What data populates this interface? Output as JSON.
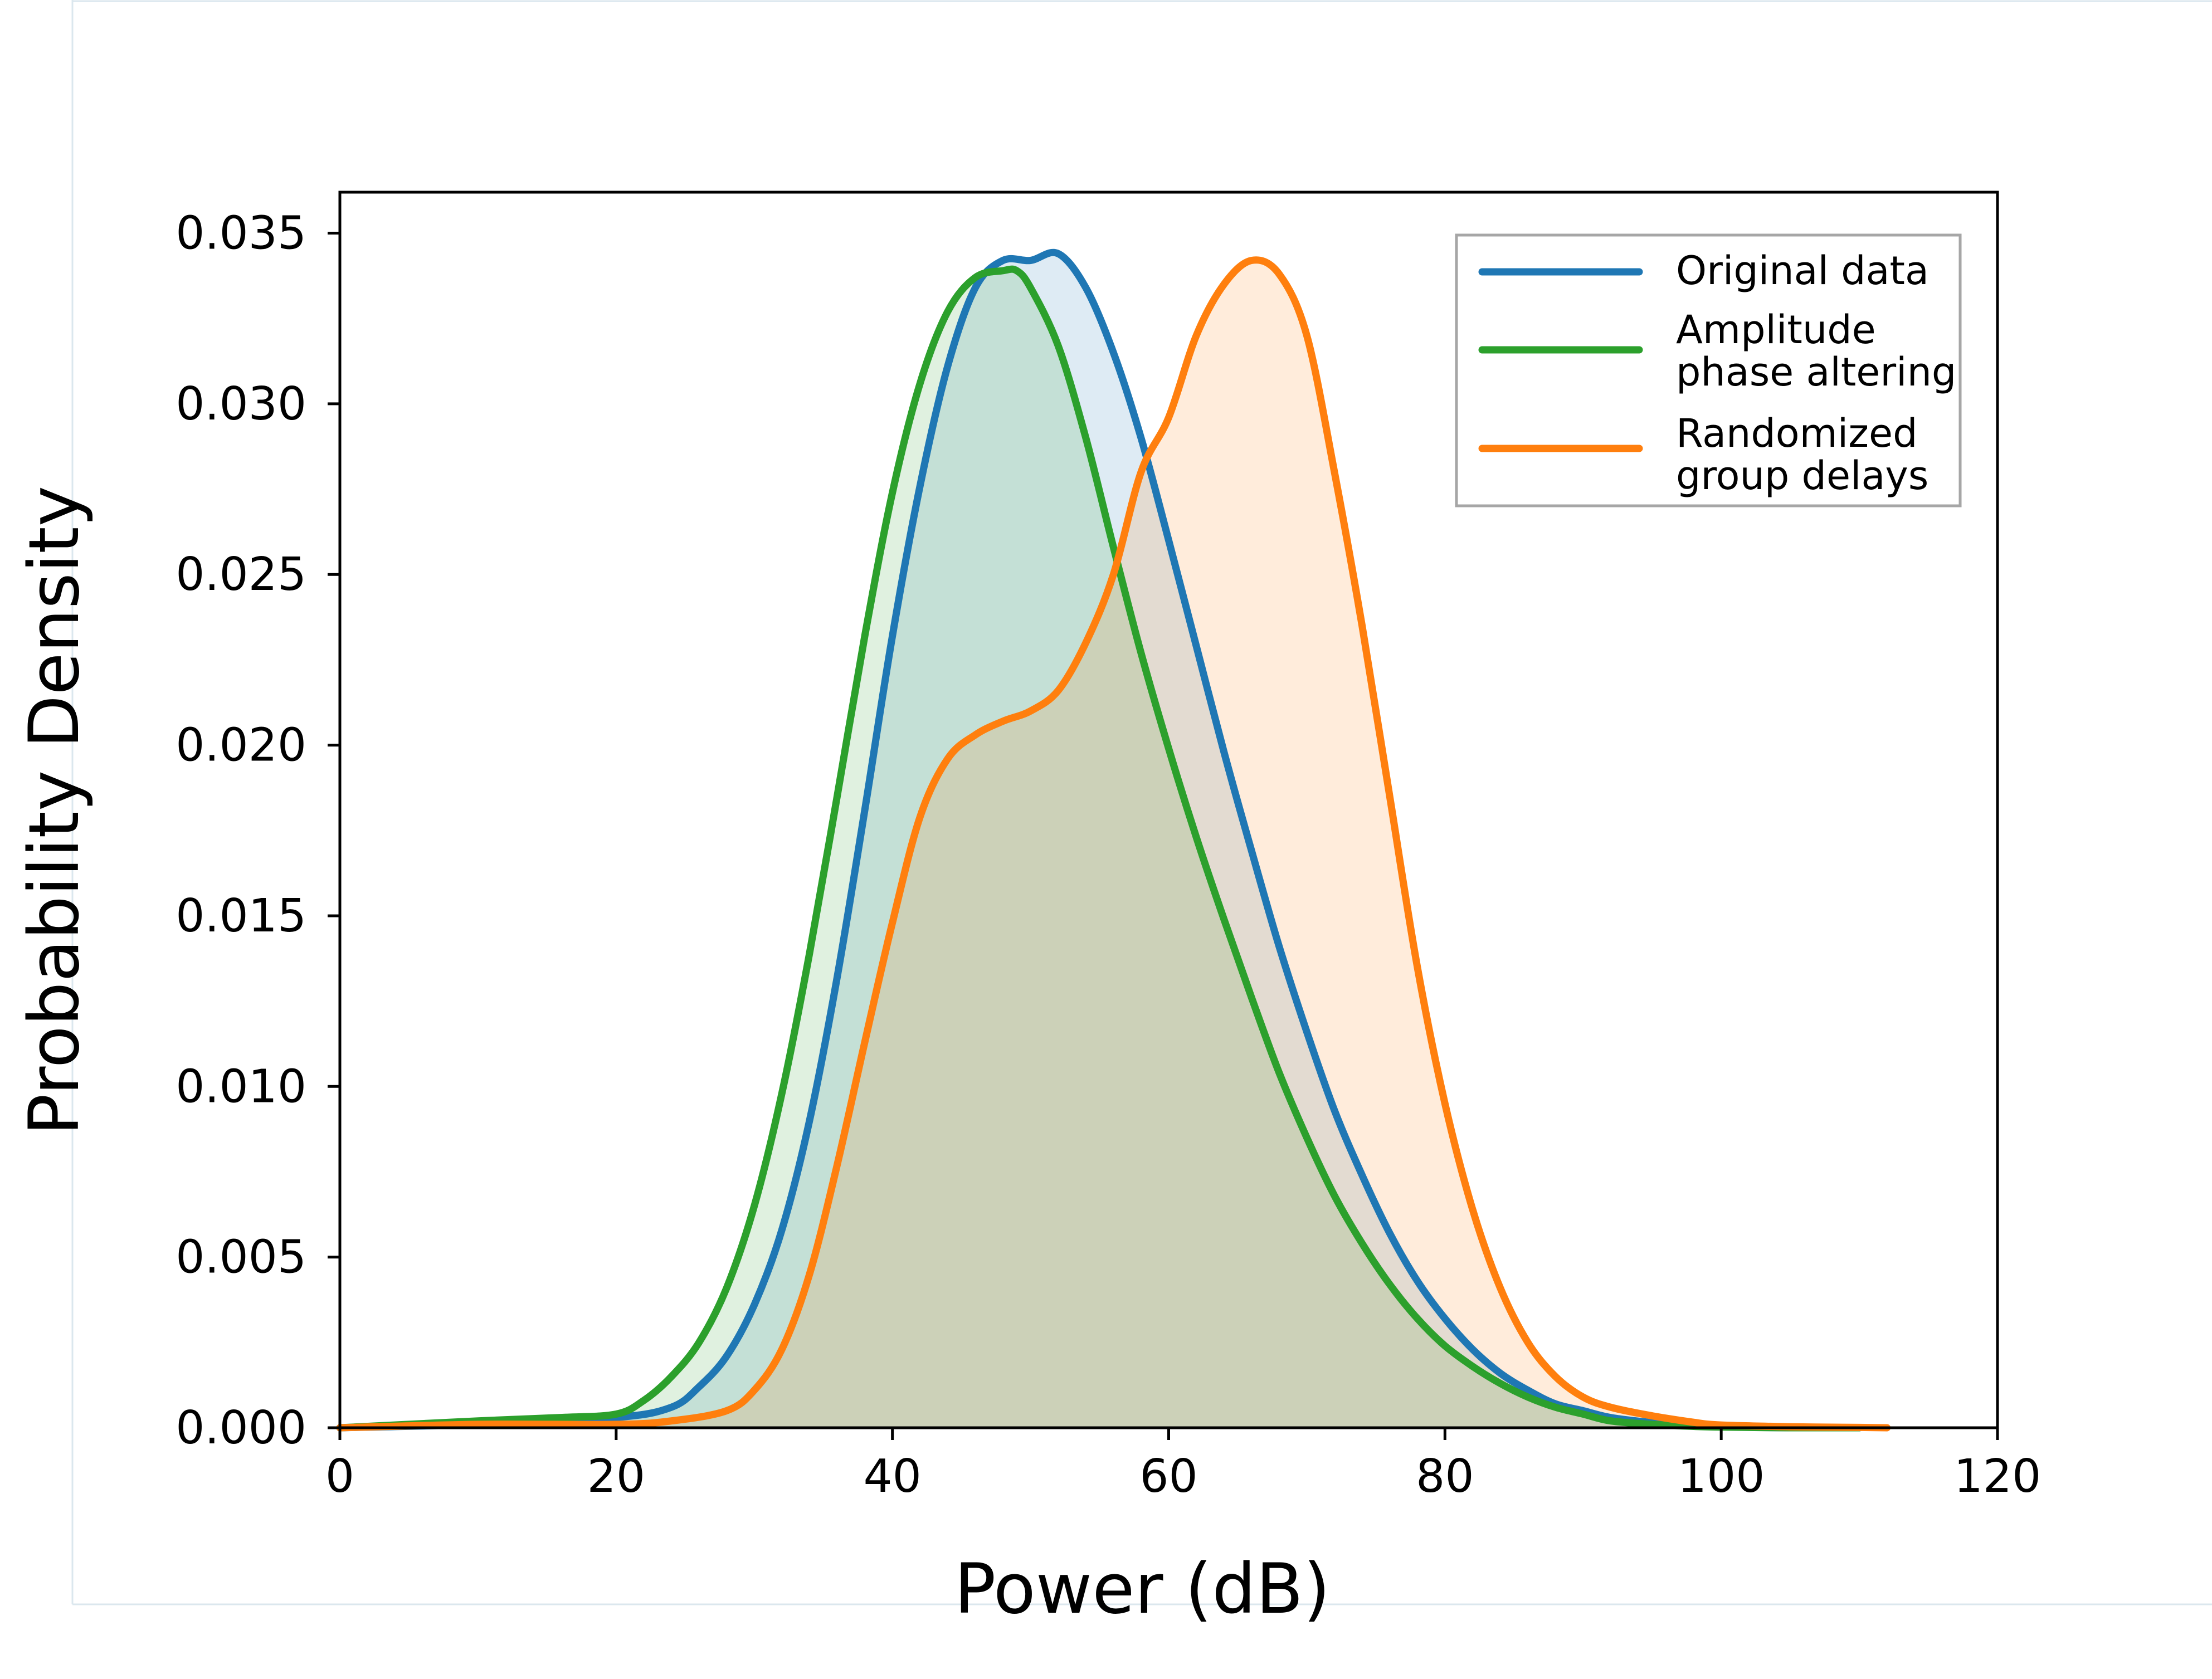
{
  "chart_data": {
    "type": "area",
    "title": "",
    "xlabel": "Power (dB)",
    "ylabel": "Probability Density",
    "xlim": [
      0,
      120
    ],
    "ylim": [
      0,
      0.0362
    ],
    "xticks": [
      0,
      20,
      40,
      60,
      80,
      100,
      120
    ],
    "xtick_labels": [
      "0",
      "20",
      "40",
      "60",
      "80",
      "100",
      "120"
    ],
    "yticks": [
      0.0,
      0.005,
      0.01,
      0.015,
      0.02,
      0.025,
      0.03,
      0.035
    ],
    "ytick_labels": [
      "0.000",
      "0.005",
      "0.010",
      "0.015",
      "0.020",
      "0.025",
      "0.030",
      "0.035"
    ],
    "grid": false,
    "legend_position": "top-right",
    "series": [
      {
        "name": "Original data",
        "color": "#1f77b4",
        "fill_color": "rgba(31,119,180,0.15)",
        "x": [
          0,
          10,
          20,
          24,
          26,
          28,
          30,
          32,
          34,
          36,
          38,
          40,
          42,
          44,
          46,
          48,
          50,
          52,
          54,
          56,
          58,
          60,
          62,
          64,
          66,
          68,
          70,
          72,
          74,
          76,
          78,
          80,
          82,
          84,
          86,
          88,
          90,
          92,
          95,
          98,
          100,
          105,
          110
        ],
        "y": [
          0.0,
          0.0001,
          0.0003,
          0.0006,
          0.0012,
          0.0021,
          0.0036,
          0.0058,
          0.009,
          0.0132,
          0.0181,
          0.0232,
          0.0276,
          0.0311,
          0.0334,
          0.0342,
          0.0342,
          0.0344,
          0.0334,
          0.0315,
          0.029,
          0.026,
          0.0229,
          0.0198,
          0.0169,
          0.0141,
          0.0116,
          0.0093,
          0.0074,
          0.0057,
          0.0043,
          0.0032,
          0.0023,
          0.0016,
          0.0011,
          0.0007,
          0.0005,
          0.0003,
          0.00015,
          6e-05,
          3e-05,
          0.0,
          0.0
        ]
      },
      {
        "name": "Amplitude phase altering",
        "color": "#2ca02c",
        "fill_color": "rgba(44,160,44,0.15)",
        "x": [
          0,
          10,
          16,
          20,
          22,
          24,
          26,
          28,
          30,
          32,
          34,
          36,
          38,
          40,
          42,
          44,
          46,
          48,
          49,
          50,
          52,
          54,
          56,
          58,
          60,
          62,
          64,
          66,
          68,
          70,
          72,
          74,
          76,
          78,
          80,
          82,
          84,
          86,
          88,
          90,
          92,
          95,
          98,
          100,
          105,
          110
        ],
        "y": [
          0.0,
          0.0002,
          0.0003,
          0.0004,
          0.0008,
          0.0015,
          0.0025,
          0.0041,
          0.0065,
          0.0098,
          0.0139,
          0.0185,
          0.0232,
          0.0274,
          0.0306,
          0.0327,
          0.0337,
          0.0339,
          0.0339,
          0.0334,
          0.0317,
          0.029,
          0.0258,
          0.0227,
          0.0199,
          0.0173,
          0.0149,
          0.0126,
          0.0104,
          0.0085,
          0.0068,
          0.0054,
          0.0042,
          0.0032,
          0.0024,
          0.0018,
          0.0013,
          0.0009,
          0.0006,
          0.0004,
          0.0002,
          0.0001,
          4e-05,
          2e-05,
          0.0,
          0.0
        ]
      },
      {
        "name": "Randomized group delays",
        "color": "#ff7f0e",
        "fill_color": "rgba(255,127,14,0.15)",
        "x": [
          0,
          10,
          20,
          24,
          28,
          30,
          32,
          34,
          36,
          38,
          40,
          42,
          44,
          46,
          48,
          50,
          52,
          54,
          56,
          58,
          60,
          62,
          64,
          66,
          68,
          70,
          72,
          74,
          76,
          78,
          80,
          82,
          84,
          86,
          88,
          90,
          92,
          95,
          98,
          100,
          105,
          110,
          112
        ],
        "y": [
          0.0,
          0.0001,
          0.0001,
          0.0002,
          0.0005,
          0.0011,
          0.0023,
          0.0045,
          0.0077,
          0.0113,
          0.0148,
          0.0179,
          0.0196,
          0.0203,
          0.0207,
          0.021,
          0.0216,
          0.023,
          0.025,
          0.028,
          0.0296,
          0.032,
          0.0335,
          0.0342,
          0.0338,
          0.032,
          0.028,
          0.0235,
          0.0185,
          0.0135,
          0.0095,
          0.0064,
          0.0041,
          0.0025,
          0.0015,
          0.0009,
          0.0006,
          0.00035,
          0.00016,
          8e-05,
          3e-05,
          1e-05,
          0.0
        ]
      }
    ]
  },
  "legend": {
    "items": [
      {
        "line1": "Original data",
        "line2": ""
      },
      {
        "line1": "Amplitude",
        "line2": "phase altering"
      },
      {
        "line1": "Randomized",
        "line2": "group delays"
      }
    ]
  }
}
